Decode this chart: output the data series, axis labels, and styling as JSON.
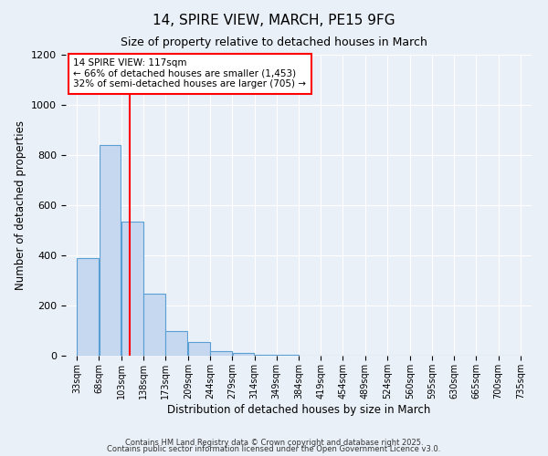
{
  "title": "14, SPIRE VIEW, MARCH, PE15 9FG",
  "subtitle": "Size of property relative to detached houses in March",
  "xlabel": "Distribution of detached houses by size in March",
  "ylabel": "Number of detached properties",
  "bin_edges": [
    33,
    68,
    103,
    138,
    173,
    209,
    244,
    279,
    314,
    349,
    384,
    419,
    454,
    489,
    524,
    560,
    595,
    630,
    665,
    700,
    735
  ],
  "bar_heights": [
    390,
    840,
    535,
    248,
    97,
    55,
    20,
    10,
    5,
    2,
    1,
    0,
    0,
    0,
    0,
    0,
    0,
    0,
    0,
    0
  ],
  "bar_color": "#c5d8f0",
  "bar_edge_color": "#5a9fd4",
  "vline_x": 117,
  "vline_color": "red",
  "annotation_text": "14 SPIRE VIEW: 117sqm\n← 66% of detached houses are smaller (1,453)\n32% of semi-detached houses are larger (705) →",
  "annotation_box_color": "white",
  "annotation_box_edge": "red",
  "ylim": [
    0,
    1200
  ],
  "yticks": [
    0,
    200,
    400,
    600,
    800,
    1000,
    1200
  ],
  "tick_labels": [
    "33sqm",
    "68sqm",
    "103sqm",
    "138sqm",
    "173sqm",
    "209sqm",
    "244sqm",
    "279sqm",
    "314sqm",
    "349sqm",
    "384sqm",
    "419sqm",
    "454sqm",
    "489sqm",
    "524sqm",
    "560sqm",
    "595sqm",
    "630sqm",
    "665sqm",
    "700sqm",
    "735sqm"
  ],
  "background_color": "#eaf0f8",
  "grid_color": "#ffffff",
  "footnote1": "Contains HM Land Registry data © Crown copyright and database right 2025.",
  "footnote2": "Contains public sector information licensed under the Open Government Licence v3.0."
}
